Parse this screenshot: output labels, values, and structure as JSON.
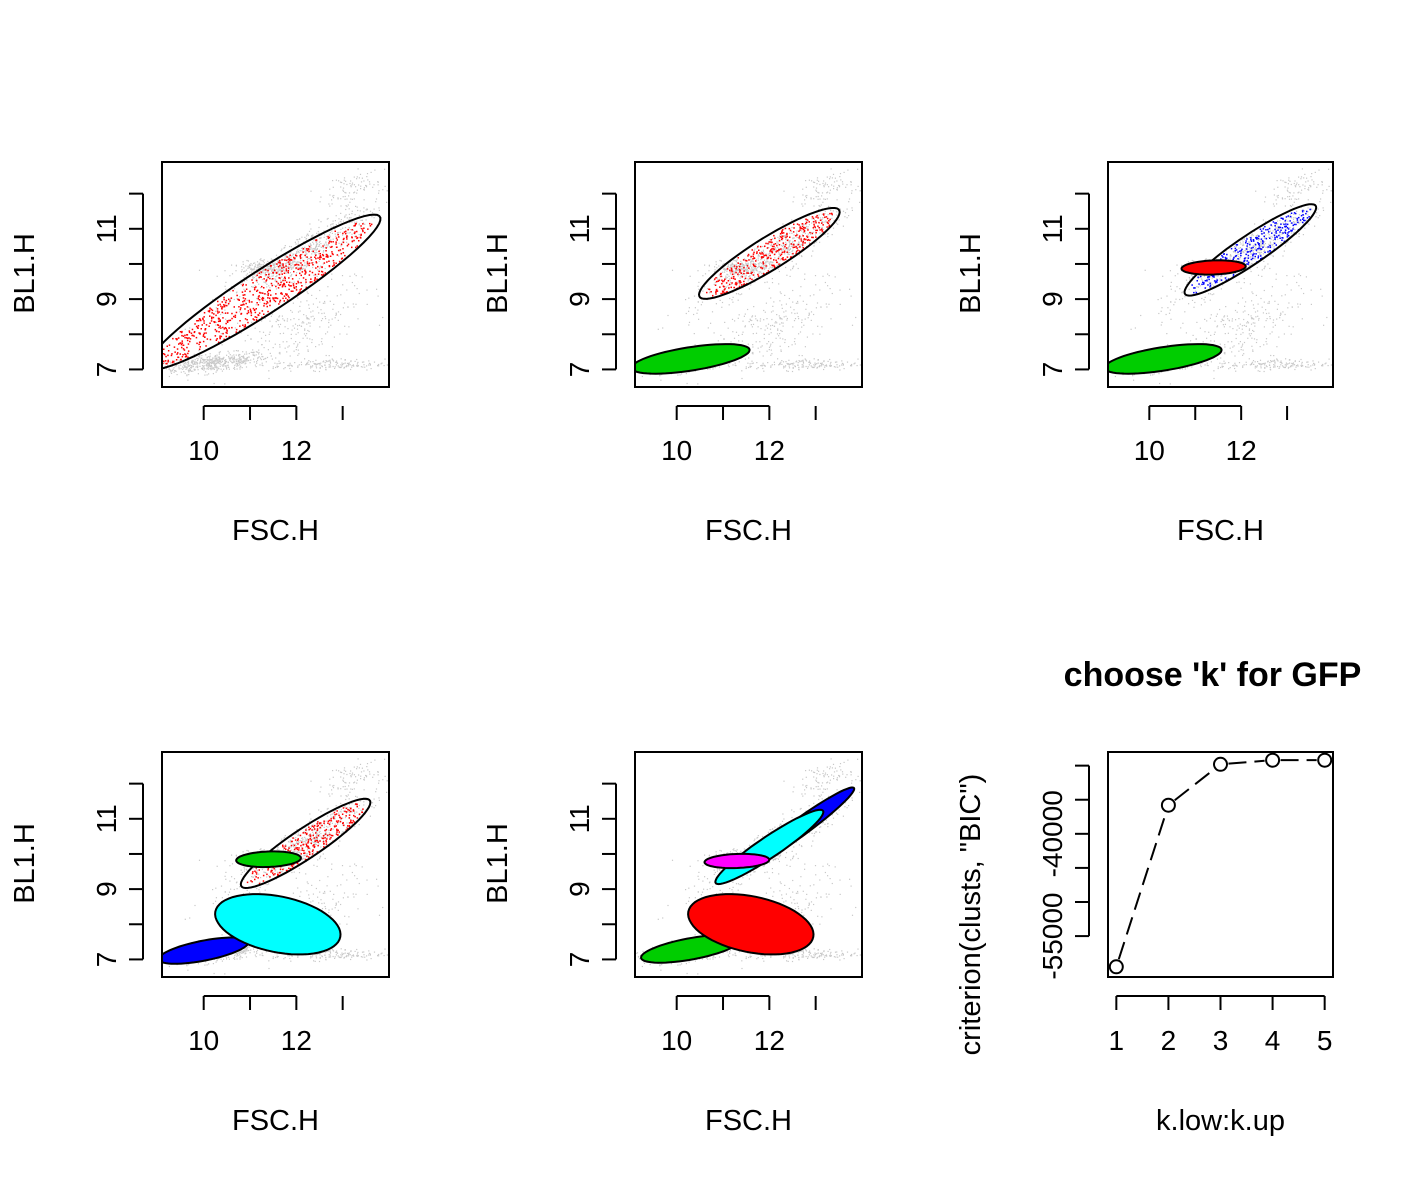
{
  "chart_data": [
    {
      "type": "scatter",
      "xlabel": "FSC.H",
      "ylabel": "BL1.H",
      "xlim": [
        9.1,
        14.0
      ],
      "ylim": [
        6.5,
        12.9
      ],
      "x_ticks": [
        10,
        12
      ],
      "x_tick_labels": [
        "10",
        "12"
      ],
      "y_ticks": [
        7,
        9,
        11
      ],
      "y_tick_labels": [
        "7",
        "9",
        "11"
      ],
      "clusters": [
        {
          "color": "#ff0000",
          "ellipse": {
            "cx": 11.3,
            "cy": 9.2,
            "rx": 3.3,
            "ry": 0.55,
            "angle": 41
          }
        }
      ]
    },
    {
      "type": "scatter",
      "xlabel": "FSC.H",
      "ylabel": "BL1.H",
      "xlim": [
        9.1,
        14.0
      ],
      "ylim": [
        6.5,
        12.9
      ],
      "x_ticks": [
        10,
        12
      ],
      "x_tick_labels": [
        "10",
        "12"
      ],
      "y_ticks": [
        7,
        9,
        11
      ],
      "y_tick_labels": [
        "7",
        "9",
        "11"
      ],
      "clusters": [
        {
          "color": "#00cd00",
          "ellipse": {
            "cx": 10.3,
            "cy": 7.3,
            "rx": 1.3,
            "ry": 0.33,
            "angle": 12
          }
        },
        {
          "color": "#ff0000",
          "ellipse": {
            "cx": 12.0,
            "cy": 10.3,
            "rx": 1.95,
            "ry": 0.42,
            "angle": 40
          }
        }
      ]
    },
    {
      "type": "scatter",
      "xlabel": "FSC.H",
      "ylabel": "BL1.H",
      "xlim": [
        9.1,
        14.0
      ],
      "ylim": [
        6.5,
        12.9
      ],
      "x_ticks": [
        10,
        12
      ],
      "x_tick_labels": [
        "10",
        "12"
      ],
      "y_ticks": [
        7,
        9,
        11
      ],
      "y_tick_labels": [
        "7",
        "9",
        "11"
      ],
      "clusters": [
        {
          "color": "#00cd00",
          "ellipse": {
            "cx": 10.3,
            "cy": 7.3,
            "rx": 1.3,
            "ry": 0.33,
            "angle": 12
          }
        },
        {
          "color": "#0000ff",
          "ellipse": {
            "cx": 12.2,
            "cy": 10.4,
            "rx": 1.9,
            "ry": 0.37,
            "angle": 42
          }
        },
        {
          "color": "#ff0000",
          "ellipse": {
            "cx": 11.4,
            "cy": 9.9,
            "rx": 0.7,
            "ry": 0.2,
            "angle": 3
          }
        }
      ]
    },
    {
      "type": "scatter",
      "xlabel": "FSC.H",
      "ylabel": "BL1.H",
      "xlim": [
        9.1,
        14.0
      ],
      "ylim": [
        6.5,
        12.9
      ],
      "x_ticks": [
        10,
        12
      ],
      "x_tick_labels": [
        "10",
        "12"
      ],
      "y_ticks": [
        7,
        9,
        11
      ],
      "y_tick_labels": [
        "7",
        "9",
        "11"
      ],
      "clusters": [
        {
          "color": "#0000ff",
          "ellipse": {
            "cx": 10.0,
            "cy": 7.25,
            "rx": 1.0,
            "ry": 0.28,
            "angle": 15
          }
        },
        {
          "color": "#ff0000",
          "ellipse": {
            "cx": 12.2,
            "cy": 10.3,
            "rx": 1.85,
            "ry": 0.38,
            "angle": 42
          }
        },
        {
          "color": "#00cd00",
          "ellipse": {
            "cx": 11.4,
            "cy": 9.85,
            "rx": 0.7,
            "ry": 0.22,
            "angle": 3
          }
        },
        {
          "color": "#00ffff",
          "ellipse": {
            "cx": 11.6,
            "cy": 8.0,
            "rx": 1.4,
            "ry": 0.78,
            "angle": -18
          }
        }
      ]
    },
    {
      "type": "scatter",
      "xlabel": "FSC.H",
      "ylabel": "BL1.H",
      "xlim": [
        9.1,
        14.0
      ],
      "ylim": [
        6.5,
        12.9
      ],
      "x_ticks": [
        10,
        12
      ],
      "x_tick_labels": [
        "10",
        "12"
      ],
      "y_ticks": [
        7,
        9,
        11
      ],
      "y_tick_labels": [
        "7",
        "9",
        "11"
      ],
      "clusters": [
        {
          "color": "#00cd00",
          "ellipse": {
            "cx": 10.3,
            "cy": 7.3,
            "rx": 1.1,
            "ry": 0.3,
            "angle": 14
          }
        },
        {
          "color": "#ff0000",
          "ellipse": {
            "cx": 11.6,
            "cy": 8.0,
            "rx": 1.4,
            "ry": 0.78,
            "angle": -18
          }
        },
        {
          "color": "#0000ff",
          "ellipse": {
            "cx": 12.6,
            "cy": 10.7,
            "rx": 1.7,
            "ry": 0.22,
            "angle": 44
          }
        },
        {
          "color": "#00ffff",
          "ellipse": {
            "cx": 12.0,
            "cy": 10.2,
            "rx": 1.55,
            "ry": 0.27,
            "angle": 42
          }
        },
        {
          "color": "#ff00ff",
          "ellipse": {
            "cx": 11.3,
            "cy": 9.8,
            "rx": 0.7,
            "ry": 0.2,
            "angle": 3
          }
        }
      ]
    },
    {
      "type": "line",
      "title": "choose 'k' for GFP",
      "xlabel": "k.low:k.up",
      "ylabel": "criterion(clusts, \"BIC\")",
      "x": [
        1,
        2,
        3,
        4,
        5
      ],
      "y": [
        -59500,
        -35800,
        -29800,
        -29200,
        -29200
      ],
      "xlim": [
        0.84,
        5.16
      ],
      "ylim": [
        -61000,
        -28000
      ],
      "x_ticks": [
        1,
        2,
        3,
        4,
        5
      ],
      "x_tick_labels": [
        "1",
        "2",
        "3",
        "4",
        "5"
      ],
      "y_ticks": [
        -55000,
        -50000,
        -45000,
        -40000,
        -35000,
        -30000
      ],
      "y_tick_labels": [
        "-55000",
        "",
        "",
        "-40000",
        "",
        ""
      ],
      "line_style": "dashed",
      "marker": "open-circle"
    }
  ]
}
